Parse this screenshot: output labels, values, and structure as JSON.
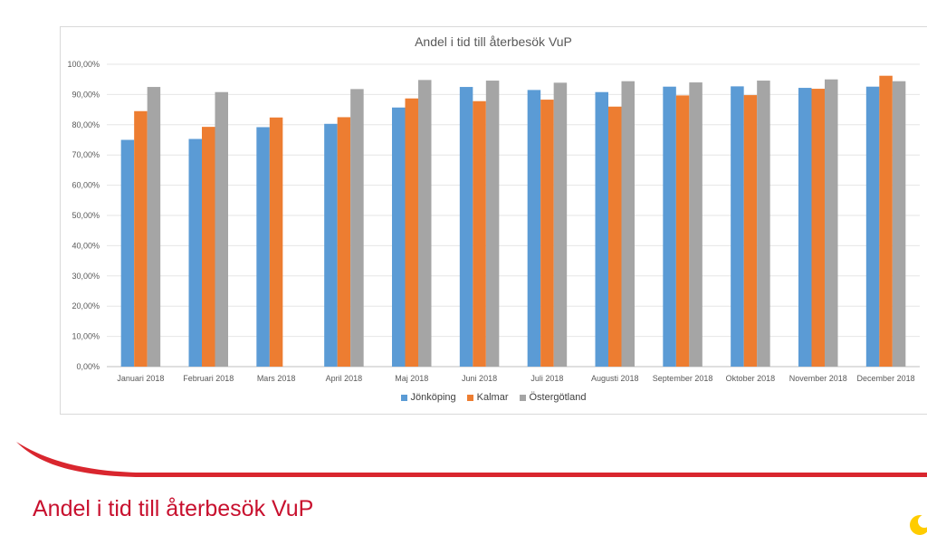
{
  "slide": {
    "title": "Andel i tid till återbesök VuP",
    "accent_color": "#c8102e",
    "logo_color": "#ffcc00"
  },
  "chart_data": {
    "type": "bar",
    "title": "Andel i tid till återbesök VuP",
    "categories": [
      "Januari 2018",
      "Februari 2018",
      "Mars 2018",
      "April 2018",
      "Maj 2018",
      "Juni 2018",
      "Juli 2018",
      "Augusti 2018",
      "September 2018",
      "Oktober 2018",
      "November 2018",
      "December 2018"
    ],
    "series": [
      {
        "name": "Jönköping",
        "color": "#5b9bd5",
        "values": [
          75.0,
          75.3,
          79.2,
          80.3,
          85.7,
          92.5,
          91.5,
          90.8,
          92.6,
          92.7,
          92.2,
          92.6
        ]
      },
      {
        "name": "Kalmar",
        "color": "#ed7d31",
        "values": [
          84.5,
          79.3,
          82.4,
          82.5,
          88.7,
          87.8,
          88.3,
          86.0,
          89.7,
          89.8,
          91.9,
          96.2
        ]
      },
      {
        "name": "Östergötland",
        "color": "#a5a5a5",
        "values": [
          92.5,
          90.8,
          null,
          91.8,
          94.8,
          94.6,
          93.9,
          94.4,
          94.0,
          94.6,
          95.0,
          94.4
        ]
      }
    ],
    "yticks": [
      "0,00%",
      "10,00%",
      "20,00%",
      "30,00%",
      "40,00%",
      "50,00%",
      "60,00%",
      "70,00%",
      "80,00%",
      "90,00%",
      "100,00%"
    ],
    "ylim": [
      0,
      100
    ],
    "grid": true,
    "legend_position": "bottom"
  }
}
